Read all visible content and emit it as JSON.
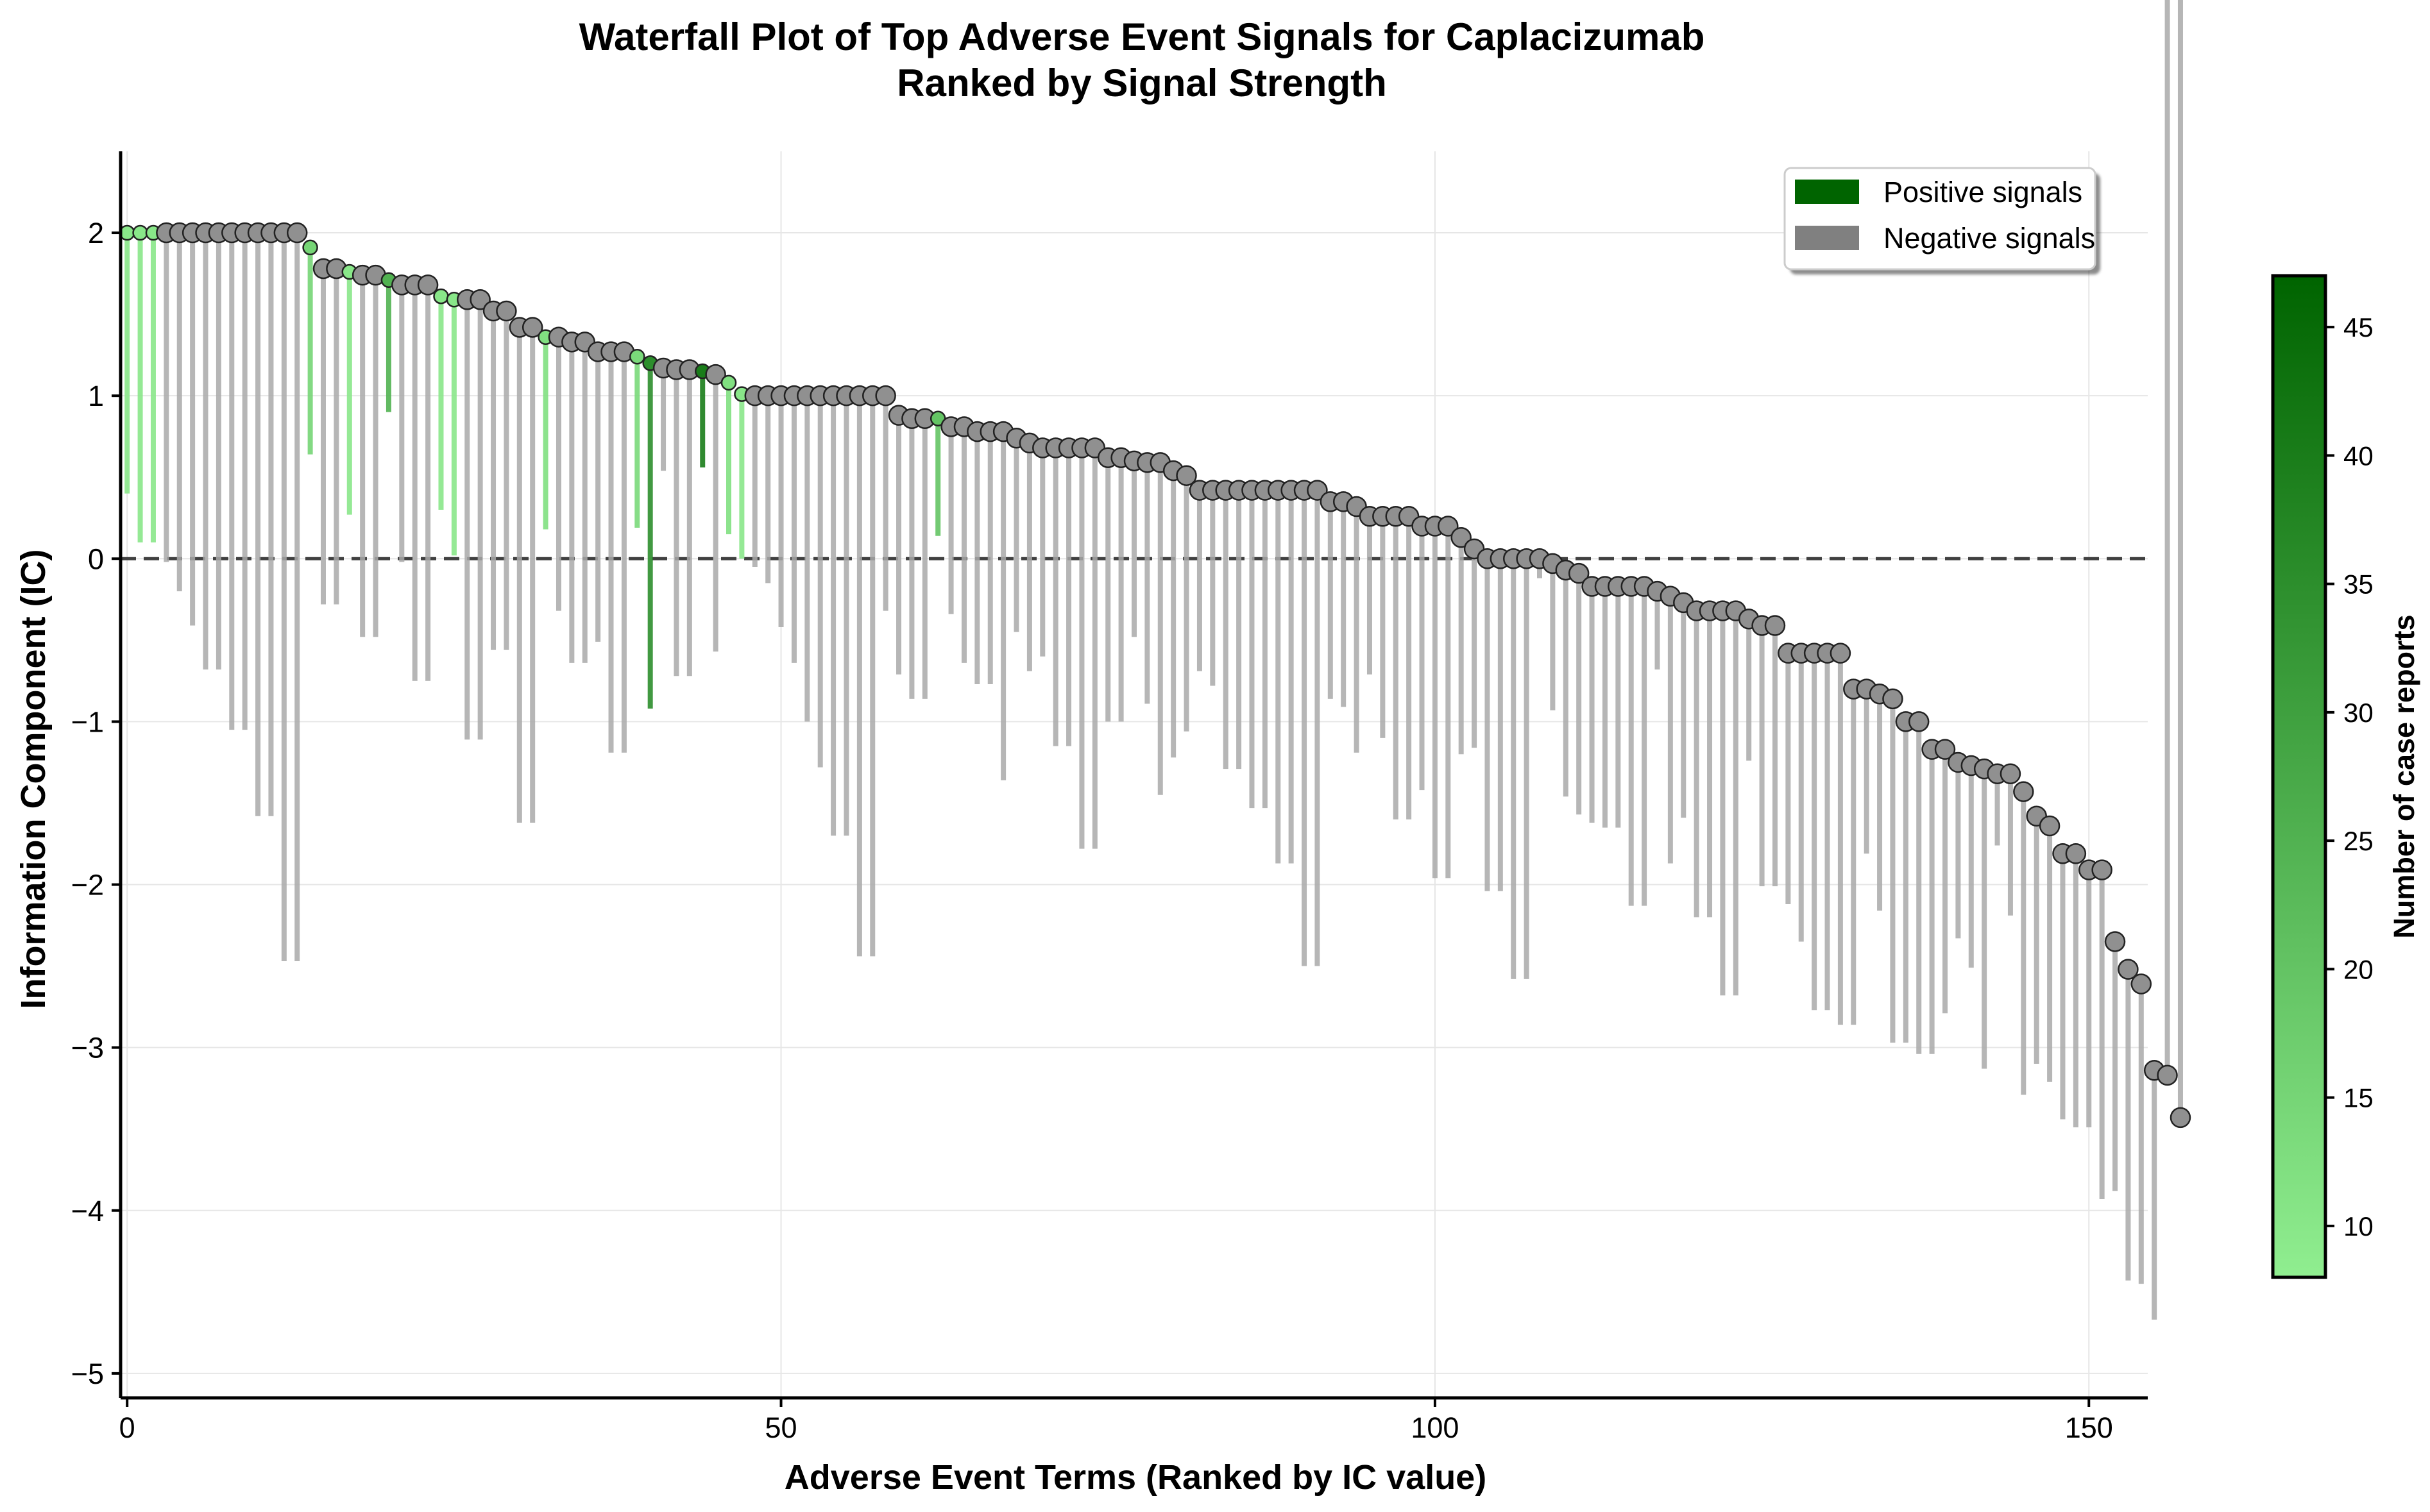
{
  "chart_data": {
    "type": "waterfall-lollipop",
    "title": "Waterfall Plot of Top Adverse Event Signals for Caplacizumab",
    "subtitle": "Ranked by Signal Strength",
    "xlabel": "Adverse Event Terms (Ranked by IC value)",
    "ylabel": "Information Component (IC)",
    "xlim": [
      -0.5,
      154.5
    ],
    "ylim": [
      -5.15,
      2.5
    ],
    "xticks": [
      0,
      50,
      100,
      150
    ],
    "yticks": [
      2,
      1,
      0,
      -1,
      -2,
      -3,
      -4,
      -5
    ],
    "xtick_labels": [
      "0",
      "50",
      "100",
      "150"
    ],
    "ytick_labels": [
      "2",
      "1",
      "0",
      "−1",
      "−2",
      "−3",
      "−4",
      "−5"
    ],
    "grid": true,
    "reference_line": 0,
    "legend": {
      "position": "top-right",
      "entries": [
        {
          "label": "Positive signals",
          "color": "#006400"
        },
        {
          "label": "Negative signals",
          "color": "#808080"
        }
      ]
    },
    "colorbar": {
      "label": "Number of case reports",
      "min": 8,
      "max": 47,
      "ticks": [
        10,
        15,
        20,
        25,
        30,
        35,
        40,
        45
      ],
      "tick_labels": [
        "10",
        "15",
        "20",
        "25",
        "30",
        "35",
        "40",
        "45"
      ],
      "color_low": "#90ee90",
      "color_high": "#006400"
    },
    "ic": [
      2.0,
      2.0,
      2.0,
      2.0,
      2.0,
      2.0,
      2.0,
      2.0,
      2.0,
      2.0,
      2.0,
      2.0,
      2.0,
      2.0,
      1.91,
      1.78,
      1.78,
      1.76,
      1.74,
      1.74,
      1.71,
      1.68,
      1.68,
      1.68,
      1.61,
      1.59,
      1.59,
      1.59,
      1.52,
      1.52,
      1.42,
      1.42,
      1.36,
      1.36,
      1.33,
      1.33,
      1.27,
      1.27,
      1.27,
      1.24,
      1.2,
      1.17,
      1.16,
      1.16,
      1.15,
      1.13,
      1.08,
      1.01,
      1.0,
      1.0,
      1.0,
      1.0,
      1.0,
      1.0,
      1.0,
      1.0,
      1.0,
      1.0,
      1.0,
      0.88,
      0.86,
      0.86,
      0.86,
      0.81,
      0.81,
      0.78,
      0.78,
      0.78,
      0.74,
      0.71,
      0.68,
      0.68,
      0.68,
      0.68,
      0.68,
      0.62,
      0.62,
      0.6,
      0.59,
      0.59,
      0.54,
      0.51,
      0.42,
      0.42,
      0.42,
      0.42,
      0.42,
      0.42,
      0.42,
      0.42,
      0.42,
      0.42,
      0.35,
      0.35,
      0.32,
      0.26,
      0.26,
      0.26,
      0.26,
      0.2,
      0.2,
      0.2,
      0.13,
      0.06,
      0.0,
      0.0,
      0.0,
      0.0,
      0.0,
      -0.03,
      -0.07,
      -0.09,
      -0.17,
      -0.17,
      -0.17,
      -0.17,
      -0.17,
      -0.2,
      -0.23,
      -0.27,
      -0.32,
      -0.32,
      -0.32,
      -0.32,
      -0.37,
      -0.41,
      -0.41,
      -0.58,
      -0.58,
      -0.58,
      -0.58,
      -0.58,
      -0.8,
      -0.8,
      -0.83,
      -0.86,
      -1.0,
      -1.0,
      -1.17,
      -1.17,
      -1.25,
      -1.27,
      -1.29,
      -1.32,
      -1.32,
      -1.43,
      -1.58,
      -1.64,
      -1.81,
      -1.81,
      -1.91,
      -1.91,
      -2.35,
      -2.52,
      -2.61,
      -3.14,
      -3.17,
      -3.43
    ],
    "ic_lower": [
      0.4,
      0.1,
      0.1,
      -0.02,
      -0.2,
      -0.41,
      -0.68,
      -0.68,
      -1.05,
      -1.05,
      -1.58,
      -1.58,
      -2.47,
      -2.47,
      0.64,
      -0.28,
      -0.28,
      0.27,
      -0.48,
      -0.48,
      0.9,
      -0.02,
      -0.75,
      -0.75,
      0.3,
      0.02,
      -1.11,
      -1.11,
      -0.56,
      -0.56,
      -1.62,
      -1.62,
      0.18,
      -0.32,
      -0.64,
      -0.64,
      -0.51,
      -1.19,
      -1.19,
      0.19,
      -0.92,
      0.54,
      -0.72,
      -0.72,
      0.56,
      -0.57,
      0.15,
      0.0,
      -0.05,
      -0.15,
      -0.42,
      -0.64,
      -1.0,
      -1.28,
      -1.7,
      -1.7,
      -2.44,
      -2.44,
      -0.32,
      -0.71,
      -0.86,
      -0.86,
      0.14,
      -0.34,
      -0.64,
      -0.77,
      -0.77,
      -1.36,
      -0.45,
      -0.69,
      -0.6,
      -1.15,
      -1.15,
      -1.78,
      -1.78,
      -1.0,
      -1.0,
      -0.48,
      -0.89,
      -1.45,
      -1.22,
      -1.06,
      -0.69,
      -0.78,
      -1.29,
      -1.29,
      -1.53,
      -1.53,
      -1.87,
      -1.87,
      -2.5,
      -2.5,
      -0.86,
      -0.91,
      -1.19,
      -0.71,
      -1.1,
      -1.6,
      -1.6,
      -1.42,
      -1.96,
      -1.96,
      -1.2,
      -1.16,
      -2.04,
      -2.04,
      -2.58,
      -2.58,
      -0.12,
      -0.93,
      -1.46,
      -1.57,
      -1.62,
      -1.65,
      -1.65,
      -2.13,
      -2.13,
      -0.68,
      -1.87,
      -1.59,
      -2.2,
      -2.2,
      -2.68,
      -2.68,
      -1.24,
      -2.01,
      -2.01,
      -2.12,
      -2.35,
      -2.77,
      -2.77,
      -2.86,
      -2.86,
      -1.81,
      -2.16,
      -2.97,
      -2.97,
      -3.04,
      -3.04,
      -2.79,
      -2.33,
      -2.51,
      -3.13,
      -1.76,
      -2.19,
      -3.29,
      -3.1,
      -3.21,
      -3.44,
      -3.49,
      -3.49,
      -3.93,
      -3.88,
      -4.43,
      -4.45,
      -4.67
    ],
    "counts": [
      10,
      10,
      10,
      0,
      0,
      0,
      0,
      0,
      0,
      0,
      0,
      0,
      0,
      0,
      15,
      0,
      0,
      10,
      0,
      0,
      25,
      0,
      0,
      0,
      10,
      10,
      0,
      0,
      0,
      0,
      0,
      0,
      12,
      0,
      0,
      0,
      0,
      0,
      0,
      14,
      35,
      0,
      0,
      0,
      40,
      0,
      12,
      10,
      0,
      0,
      0,
      0,
      0,
      0,
      0,
      0,
      0,
      0,
      0,
      0,
      0,
      0,
      20,
      0,
      0,
      0,
      0,
      0,
      0,
      0,
      0,
      0,
      0,
      0,
      0,
      0,
      0,
      0,
      0,
      0,
      0,
      0,
      0,
      0,
      0,
      0,
      0,
      0,
      0,
      0,
      0,
      0,
      0,
      0,
      0,
      0,
      0,
      0,
      0,
      0,
      0,
      0,
      0,
      0,
      0,
      0,
      0,
      0,
      0,
      0,
      0,
      0,
      0,
      0,
      0,
      0,
      0,
      0,
      0,
      0,
      0,
      0,
      0,
      0,
      0,
      0,
      0,
      0,
      0,
      0,
      0,
      0,
      0,
      0,
      0,
      0,
      0,
      0,
      0,
      0,
      0,
      0,
      0,
      0,
      0,
      0,
      0,
      0,
      0,
      0,
      0,
      0,
      0,
      0,
      0
    ]
  }
}
